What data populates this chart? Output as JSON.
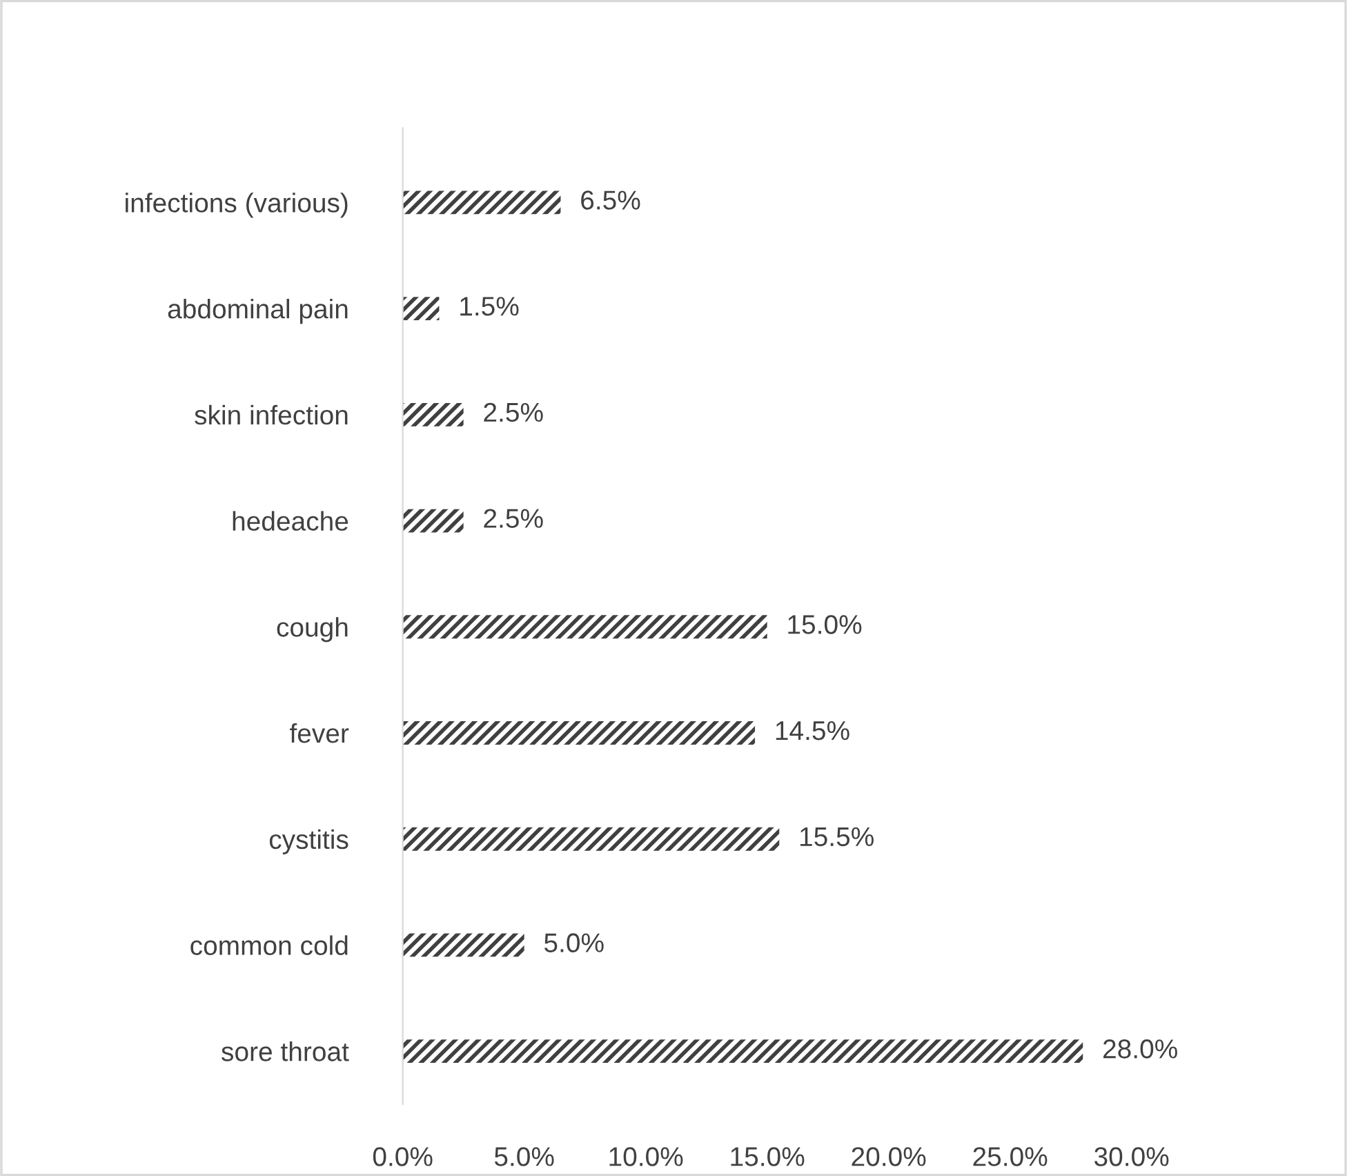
{
  "chart_data": {
    "type": "bar",
    "orientation": "horizontal",
    "categories": [
      "infections (various)",
      "abdominal pain",
      "skin infection",
      "hedeache",
      "cough",
      "fever",
      "cystitis",
      "common cold",
      "sore throat"
    ],
    "values": [
      6.5,
      1.5,
      2.5,
      2.5,
      15.0,
      14.5,
      15.5,
      5.0,
      28.0
    ],
    "value_labels": [
      "6.5%",
      "1.5%",
      "2.5%",
      "2.5%",
      "15.0%",
      "14.5%",
      "15.5%",
      "5.0%",
      "28.0%"
    ],
    "color": "#404040",
    "xlim": [
      0,
      30
    ],
    "xticks": [
      {
        "value": 0,
        "label": "0.0%"
      },
      {
        "value": 5,
        "label": "5.0%"
      },
      {
        "value": 10,
        "label": "10.0%"
      },
      {
        "value": 15,
        "label": "15.0%"
      },
      {
        "value": 20,
        "label": "20.0%"
      },
      {
        "value": 25,
        "label": "25.0%"
      },
      {
        "value": 30,
        "label": "30.0%"
      }
    ],
    "grid": false,
    "legend": false
  }
}
